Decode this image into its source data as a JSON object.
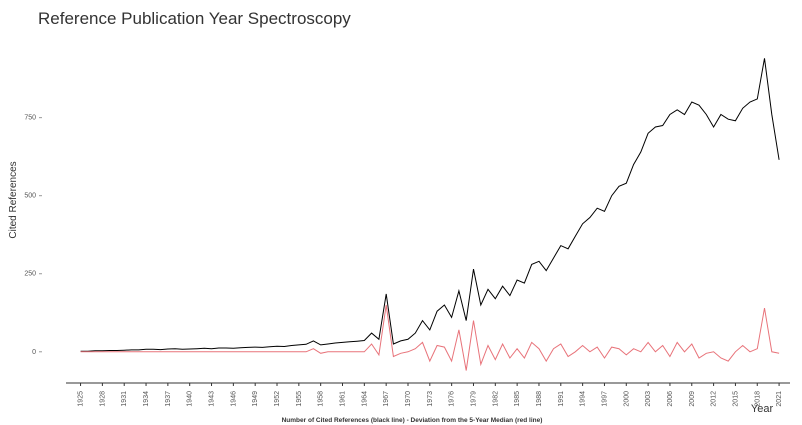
{
  "chart_data": {
    "type": "line",
    "title": "Reference Publication Year Spectroscopy",
    "y_label": "Cited References",
    "x_label": "Year",
    "caption": "Number of Cited References (black line) - Deviation from the 5-Year Median (red line)",
    "x": [
      1925,
      1926,
      1927,
      1928,
      1929,
      1930,
      1931,
      1932,
      1933,
      1934,
      1935,
      1936,
      1937,
      1938,
      1939,
      1940,
      1941,
      1942,
      1943,
      1944,
      1945,
      1946,
      1947,
      1948,
      1949,
      1950,
      1951,
      1952,
      1953,
      1954,
      1955,
      1956,
      1957,
      1958,
      1959,
      1960,
      1961,
      1962,
      1963,
      1964,
      1965,
      1966,
      1967,
      1968,
      1969,
      1970,
      1971,
      1972,
      1973,
      1974,
      1975,
      1976,
      1977,
      1978,
      1979,
      1980,
      1981,
      1982,
      1983,
      1984,
      1985,
      1986,
      1987,
      1988,
      1989,
      1990,
      1991,
      1992,
      1993,
      1994,
      1995,
      1996,
      1997,
      1998,
      1999,
      2000,
      2001,
      2002,
      2003,
      2004,
      2005,
      2006,
      2007,
      2008,
      2009,
      2010,
      2011,
      2012,
      2013,
      2014,
      2015,
      2016,
      2017,
      2018,
      2019,
      2020,
      2021
    ],
    "series": [
      {
        "color": "#000000",
        "values": [
          2,
          2,
          3,
          3,
          4,
          4,
          5,
          6,
          6,
          8,
          8,
          7,
          9,
          10,
          8,
          9,
          10,
          11,
          10,
          12,
          12,
          11,
          13,
          14,
          15,
          14,
          16,
          18,
          17,
          20,
          22,
          24,
          35,
          22,
          25,
          28,
          30,
          32,
          34,
          36,
          60,
          40,
          185,
          25,
          35,
          40,
          60,
          100,
          70,
          130,
          150,
          110,
          195,
          100,
          265,
          150,
          200,
          170,
          210,
          180,
          230,
          220,
          280,
          290,
          260,
          300,
          340,
          330,
          370,
          410,
          430,
          460,
          450,
          500,
          530,
          540,
          600,
          640,
          700,
          720,
          725,
          760,
          775,
          760,
          800,
          790,
          760,
          720,
          760,
          745,
          740,
          780,
          800,
          810,
          940,
          760,
          615
        ]
      },
      {
        "color": "#e8737a",
        "values": [
          0,
          0,
          0,
          0,
          0,
          0,
          0,
          0,
          0,
          0,
          0,
          0,
          0,
          0,
          0,
          0,
          0,
          0,
          0,
          0,
          0,
          0,
          0,
          0,
          0,
          0,
          0,
          0,
          0,
          0,
          0,
          0,
          10,
          -5,
          0,
          0,
          0,
          0,
          0,
          0,
          25,
          -10,
          150,
          -15,
          -5,
          0,
          10,
          30,
          -30,
          20,
          15,
          -30,
          70,
          -60,
          100,
          -40,
          20,
          -25,
          25,
          -20,
          10,
          -20,
          30,
          10,
          -30,
          10,
          25,
          -15,
          0,
          20,
          0,
          15,
          -20,
          15,
          10,
          -10,
          10,
          0,
          30,
          0,
          20,
          -15,
          30,
          0,
          25,
          -20,
          -5,
          0,
          -20,
          -30,
          0,
          20,
          0,
          10,
          140,
          0,
          -5
        ]
      }
    ],
    "xlim": [
      1923,
      2022.5
    ],
    "xticks": [
      1925,
      1928,
      1931,
      1934,
      1937,
      1940,
      1943,
      1946,
      1949,
      1952,
      1955,
      1958,
      1961,
      1964,
      1967,
      1970,
      1973,
      1976,
      1979,
      1982,
      1985,
      1988,
      1991,
      1994,
      1997,
      2000,
      2003,
      2006,
      2009,
      2012,
      2015,
      2018,
      2021
    ],
    "ylim": [
      -100,
      1050
    ],
    "yticks": [
      0,
      250,
      500,
      750
    ]
  }
}
